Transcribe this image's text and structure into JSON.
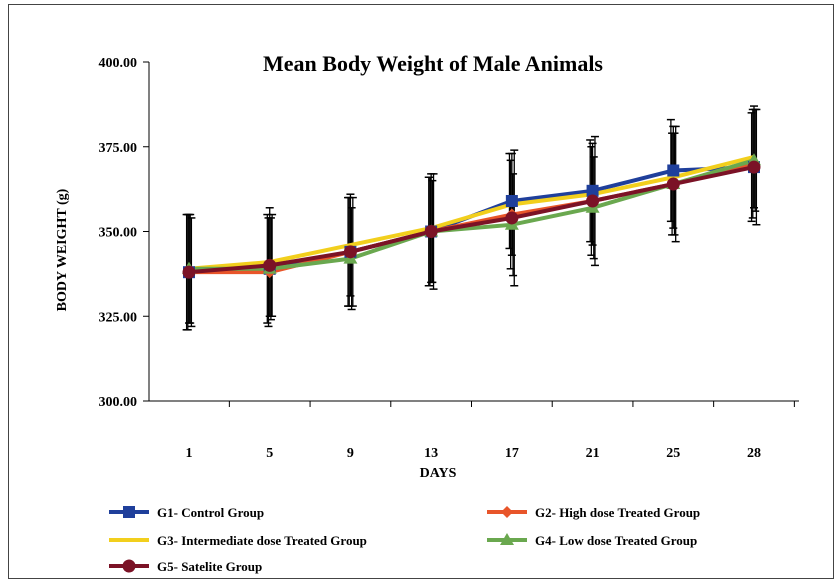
{
  "chart_data": {
    "type": "line",
    "title": "Mean Body Weight  of Male Animals",
    "xlabel": "DAYS",
    "ylabel": "BODY WEIGHT (g)",
    "categories": [
      "1",
      "5",
      "9",
      "13",
      "17",
      "21",
      "25",
      "28"
    ],
    "ylim": [
      300,
      400
    ],
    "yticks": [
      "300.00",
      "325.00",
      "350.00",
      "375.00",
      "400.00"
    ],
    "grid": false,
    "legend_position": "bottom",
    "error_bars": true,
    "series": [
      {
        "name": "G1- Control Group",
        "color": "#1f3f9b",
        "marker": "square",
        "values": [
          338,
          339,
          344,
          350,
          359,
          362,
          368,
          369
        ],
        "errors": [
          17,
          16,
          16,
          16,
          14,
          15,
          15,
          16
        ]
      },
      {
        "name": "G2- High dose Treated Group",
        "color": "#e8552a",
        "marker": "diamond",
        "values": [
          338,
          338,
          344,
          350,
          355,
          359,
          364,
          370
        ],
        "errors": [
          17,
          16,
          16,
          16,
          16,
          16,
          15,
          16
        ]
      },
      {
        "name": "G3- Intermediate dose Treated Group",
        "color": "#f2cf1d",
        "marker": "none",
        "values": [
          339,
          341,
          346,
          351,
          358,
          361,
          366,
          372
        ],
        "errors": [
          16,
          16,
          15,
          16,
          15,
          15,
          15,
          15
        ]
      },
      {
        "name": "G4- Low dose Treated Group",
        "color": "#6aa84f",
        "marker": "triangle",
        "values": [
          339,
          339,
          342,
          350,
          352,
          357,
          364,
          371
        ],
        "errors": [
          16,
          15,
          15,
          15,
          15,
          15,
          15,
          15
        ]
      },
      {
        "name": "G5- Satelite Group",
        "color": "#7b1226",
        "marker": "circle",
        "values": [
          338,
          340,
          344,
          350,
          354,
          359,
          364,
          369
        ],
        "errors": [
          16,
          15,
          16,
          17,
          20,
          19,
          17,
          17
        ]
      }
    ]
  }
}
